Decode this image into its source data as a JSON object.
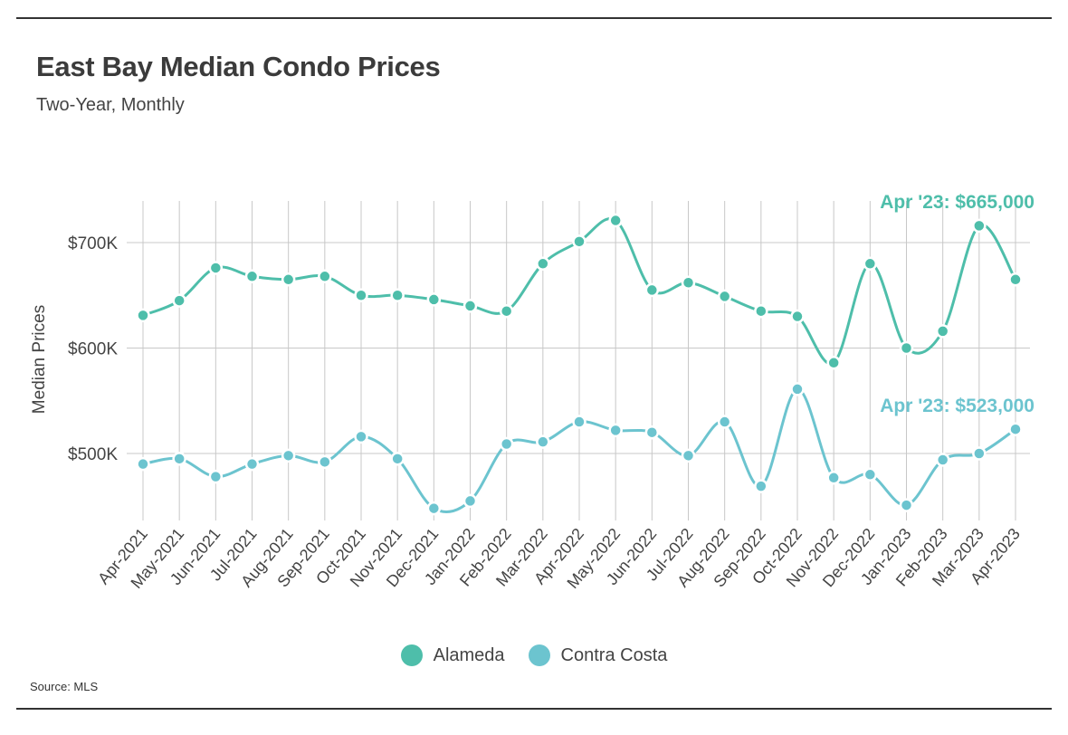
{
  "title": "East Bay Median Condo Prices",
  "subtitle": "Two-Year, Monthly",
  "source": "Source: MLS",
  "colors": {
    "alameda": "#4ebeaa",
    "contra_costa": "#6cc4cf",
    "grid": "#c8c8c8",
    "rule": "#333333"
  },
  "chart_data": {
    "type": "line",
    "title": "East Bay Median Condo Prices",
    "subtitle": "Two-Year, Monthly",
    "xlabel": "",
    "ylabel": "Median Prices",
    "ylim": [
      440,
      740
    ],
    "yticks": [
      500,
      600,
      700
    ],
    "ytick_labels": [
      "$500K",
      "$600K",
      "$700K"
    ],
    "grid": true,
    "legend_position": "bottom-center",
    "categories": [
      "Apr-2021",
      "May-2021",
      "Jun-2021",
      "Jul-2021",
      "Aug-2021",
      "Sep-2021",
      "Oct-2021",
      "Nov-2021",
      "Dec-2021",
      "Jan-2022",
      "Feb-2022",
      "Mar-2022",
      "Apr-2022",
      "May-2022",
      "Jun-2022",
      "Jul-2022",
      "Aug-2022",
      "Sep-2022",
      "Oct-2022",
      "Nov-2022",
      "Dec-2022",
      "Jan-2023",
      "Feb-2023",
      "Mar-2023",
      "Apr-2023"
    ],
    "series": [
      {
        "name": "Alameda",
        "color": "#4ebeaa",
        "values": [
          631,
          645,
          676,
          668,
          665,
          668,
          650,
          650,
          646,
          640,
          635,
          680,
          701,
          721,
          655,
          662,
          649,
          635,
          630,
          586,
          680,
          600,
          616,
          716,
          665
        ]
      },
      {
        "name": "Contra Costa",
        "color": "#6cc4cf",
        "values": [
          490,
          495,
          478,
          490,
          498,
          492,
          516,
          495,
          448,
          455,
          509,
          511,
          530,
          522,
          520,
          498,
          530,
          469,
          561,
          477,
          480,
          451,
          494,
          500,
          523
        ]
      }
    ],
    "annotations": [
      {
        "series": "Alameda",
        "category": "Apr-2023",
        "text": "Apr '23: $665,000"
      },
      {
        "series": "Contra Costa",
        "category": "Apr-2023",
        "text": "Apr '23: $523,000"
      }
    ]
  }
}
